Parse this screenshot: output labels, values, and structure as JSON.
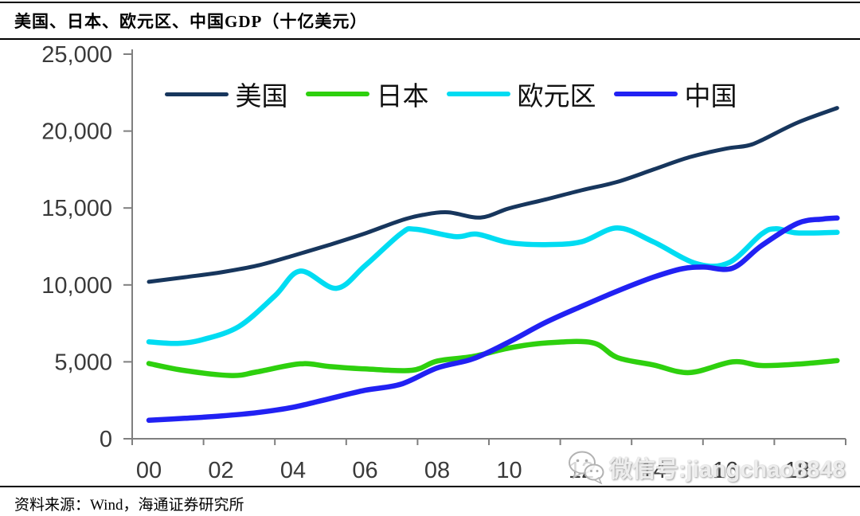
{
  "header": {
    "title": "美国、日本、欧元区、中国GDP（十亿美元）"
  },
  "footer": {
    "source": "资料来源：Wind，海通证券研究所"
  },
  "watermark": {
    "icon": "wechat-icon",
    "text": "微信号:jiangchao8848"
  },
  "chart_data": {
    "type": "line",
    "title": "美国、日本、欧元区、中国GDP（十亿美元）",
    "xlabel": "",
    "ylabel": "",
    "unit": "十亿美元",
    "grid": false,
    "legend_position": "top-center",
    "ylim": [
      0,
      25000
    ],
    "y_ticks": [
      0,
      5000,
      10000,
      15000,
      20000,
      25000
    ],
    "y_tick_labels": [
      "0",
      "5,000",
      "10,000",
      "15,000",
      "20,000",
      "25,000"
    ],
    "x_label_years": [
      2000,
      2002,
      2004,
      2006,
      2008,
      2010,
      2012,
      2014,
      2016,
      2018
    ],
    "x_tick_labels": [
      "00",
      "02",
      "04",
      "06",
      "08",
      "10",
      "12",
      "14",
      "16",
      "18"
    ],
    "x_range_years": [
      2000,
      2019.1
    ],
    "series": [
      {
        "name": "美国",
        "color": "#17365d",
        "points": [
          [
            2000,
            10200
          ],
          [
            2001,
            10500
          ],
          [
            2002,
            10820
          ],
          [
            2003,
            11250
          ],
          [
            2004,
            11900
          ],
          [
            2005,
            12600
          ],
          [
            2006,
            13350
          ],
          [
            2007,
            14200
          ],
          [
            2007.6,
            14550
          ],
          [
            2008.3,
            14720
          ],
          [
            2009.2,
            14380
          ],
          [
            2010,
            14980
          ],
          [
            2011,
            15550
          ],
          [
            2012,
            16150
          ],
          [
            2013,
            16700
          ],
          [
            2014,
            17500
          ],
          [
            2015,
            18300
          ],
          [
            2016,
            18850
          ],
          [
            2016.6,
            19050
          ],
          [
            2017,
            19400
          ],
          [
            2018,
            20550
          ],
          [
            2019.1,
            21500
          ]
        ]
      },
      {
        "name": "日本",
        "color": "#2ed00e",
        "points": [
          [
            2000,
            4890
          ],
          [
            2001,
            4430
          ],
          [
            2002.3,
            4110
          ],
          [
            2003,
            4350
          ],
          [
            2004.2,
            4870
          ],
          [
            2005,
            4700
          ],
          [
            2006,
            4540
          ],
          [
            2007.3,
            4450
          ],
          [
            2008,
            5050
          ],
          [
            2009,
            5350
          ],
          [
            2010,
            5900
          ],
          [
            2011,
            6220
          ],
          [
            2012.3,
            6250
          ],
          [
            2013,
            5280
          ],
          [
            2014,
            4800
          ],
          [
            2015,
            4300
          ],
          [
            2016.2,
            5000
          ],
          [
            2017,
            4760
          ],
          [
            2018,
            4850
          ],
          [
            2019.1,
            5080
          ]
        ]
      },
      {
        "name": "欧元区",
        "color": "#00dcf2",
        "points": [
          [
            2000,
            6300
          ],
          [
            2000.8,
            6200
          ],
          [
            2001.5,
            6450
          ],
          [
            2002.5,
            7300
          ],
          [
            2003.5,
            9300
          ],
          [
            2004.2,
            10900
          ],
          [
            2005.2,
            9780
          ],
          [
            2006,
            11250
          ],
          [
            2007,
            13350
          ],
          [
            2007.4,
            13620
          ],
          [
            2008.5,
            13140
          ],
          [
            2009.1,
            13300
          ],
          [
            2010,
            12750
          ],
          [
            2011,
            12620
          ],
          [
            2012,
            12800
          ],
          [
            2013,
            13700
          ],
          [
            2014,
            12800
          ],
          [
            2015.2,
            11380
          ],
          [
            2016.1,
            11450
          ],
          [
            2017,
            13300
          ],
          [
            2017.4,
            13650
          ],
          [
            2018,
            13380
          ],
          [
            2019.1,
            13420
          ]
        ]
      },
      {
        "name": "中国",
        "color": "#2121f3",
        "points": [
          [
            2000,
            1200
          ],
          [
            2001,
            1330
          ],
          [
            2002,
            1480
          ],
          [
            2003,
            1700
          ],
          [
            2004,
            2050
          ],
          [
            2005,
            2600
          ],
          [
            2006,
            3150
          ],
          [
            2007,
            3550
          ],
          [
            2008,
            4600
          ],
          [
            2009,
            5200
          ],
          [
            2010,
            6300
          ],
          [
            2011,
            7550
          ],
          [
            2012,
            8600
          ],
          [
            2013,
            9600
          ],
          [
            2014,
            10500
          ],
          [
            2014.8,
            11050
          ],
          [
            2015.4,
            11160
          ],
          [
            2016.2,
            11090
          ],
          [
            2017,
            12550
          ],
          [
            2018,
            14000
          ],
          [
            2018.7,
            14280
          ],
          [
            2019.1,
            14350
          ]
        ]
      }
    ]
  }
}
